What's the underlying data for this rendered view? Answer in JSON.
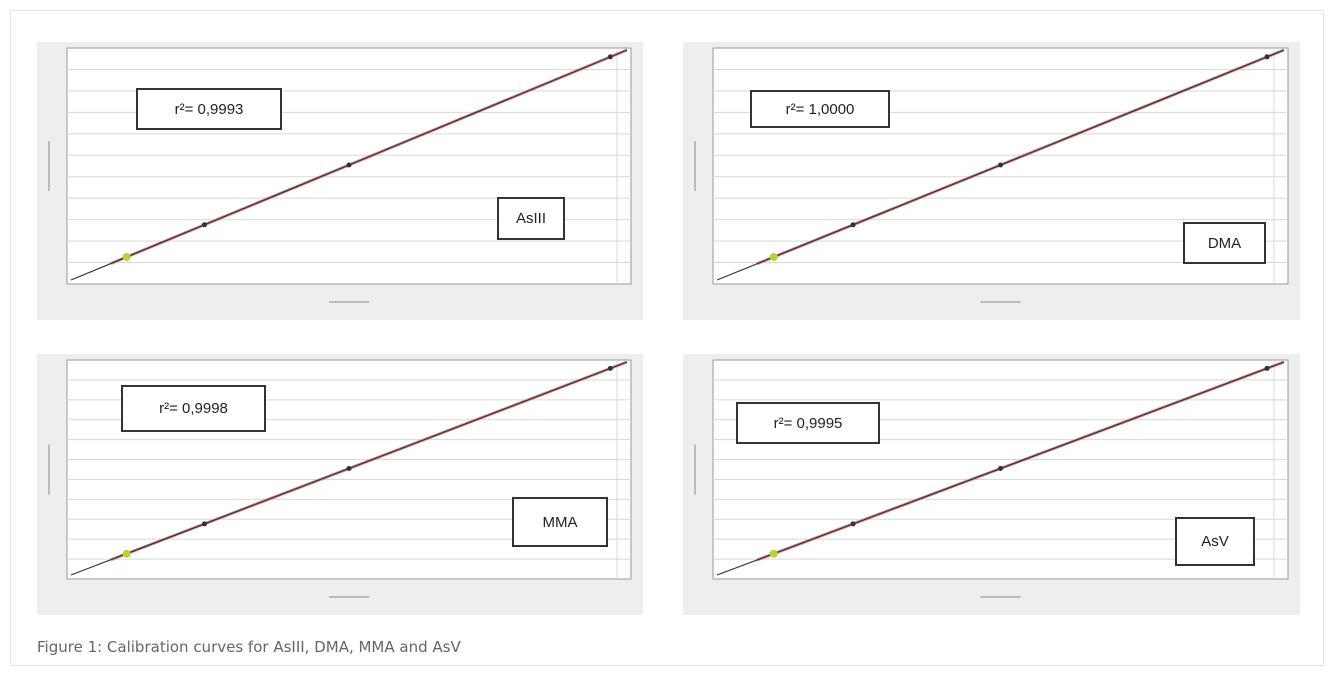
{
  "panels": [
    {
      "r2": "r²= 0,9993",
      "species": "AsIII"
    },
    {
      "r2": "r²= 1,0000",
      "species": "DMA"
    },
    {
      "r2": "r²= 0,9998",
      "species": "MMA"
    },
    {
      "r2": "r²= 0,9995",
      "species": "AsV"
    }
  ],
  "caption": "Figure 1: Calibration curves for AsIII, DMA, MMA and AsV"
}
